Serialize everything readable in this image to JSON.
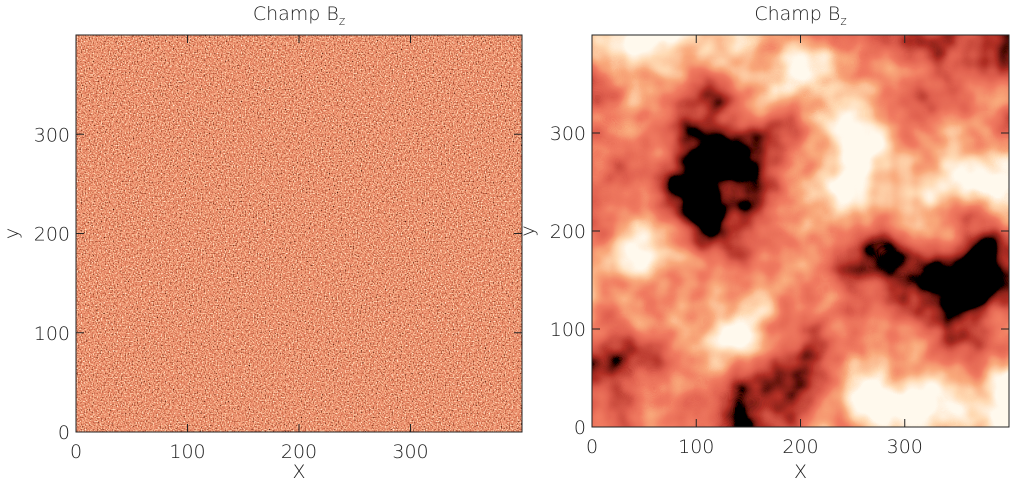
{
  "chart_data": [
    {
      "type": "heatmap",
      "title": "Champ B",
      "title_subscript": "z",
      "xlabel": "X",
      "ylabel": "y",
      "xlim": [
        0,
        400
      ],
      "ylim": [
        0,
        400
      ],
      "xticks": [
        0,
        100,
        200,
        300
      ],
      "yticks": [
        0,
        100,
        200,
        300
      ],
      "contours": false
    },
    {
      "type": "heatmap",
      "title": "Champ B",
      "title_subscript": "z",
      "xlabel": "X",
      "ylabel": "y",
      "xlim": [
        0,
        400
      ],
      "ylim": [
        0,
        400
      ],
      "xticks": [
        0,
        100,
        200,
        300
      ],
      "yticks": [
        0,
        100,
        200,
        300
      ],
      "contours": true
    }
  ]
}
